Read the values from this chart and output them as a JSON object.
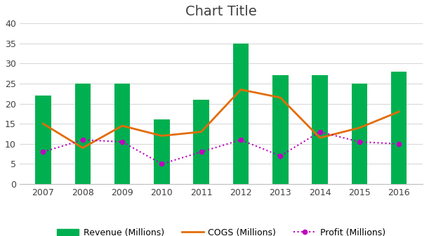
{
  "title": "Chart Title",
  "years": [
    2007,
    2008,
    2009,
    2010,
    2011,
    2012,
    2013,
    2014,
    2015,
    2016
  ],
  "revenue": [
    22,
    25,
    25,
    16,
    21,
    35,
    27,
    27,
    25,
    28
  ],
  "cogs": [
    15,
    9,
    14.5,
    12,
    13,
    23.5,
    21.5,
    11.5,
    14,
    18
  ],
  "profit": [
    8,
    11,
    10.5,
    5,
    8,
    11,
    7,
    13,
    10.5,
    10
  ],
  "bar_color": "#00b050",
  "cogs_color": "#e36c09",
  "profit_color": "#c000c0",
  "bg_color": "#ffffff",
  "ylim": [
    0,
    40
  ],
  "yticks": [
    0,
    5,
    10,
    15,
    20,
    25,
    30,
    35,
    40
  ],
  "title_fontsize": 14,
  "legend_fontsize": 9,
  "tick_fontsize": 9,
  "bar_width": 0.4
}
